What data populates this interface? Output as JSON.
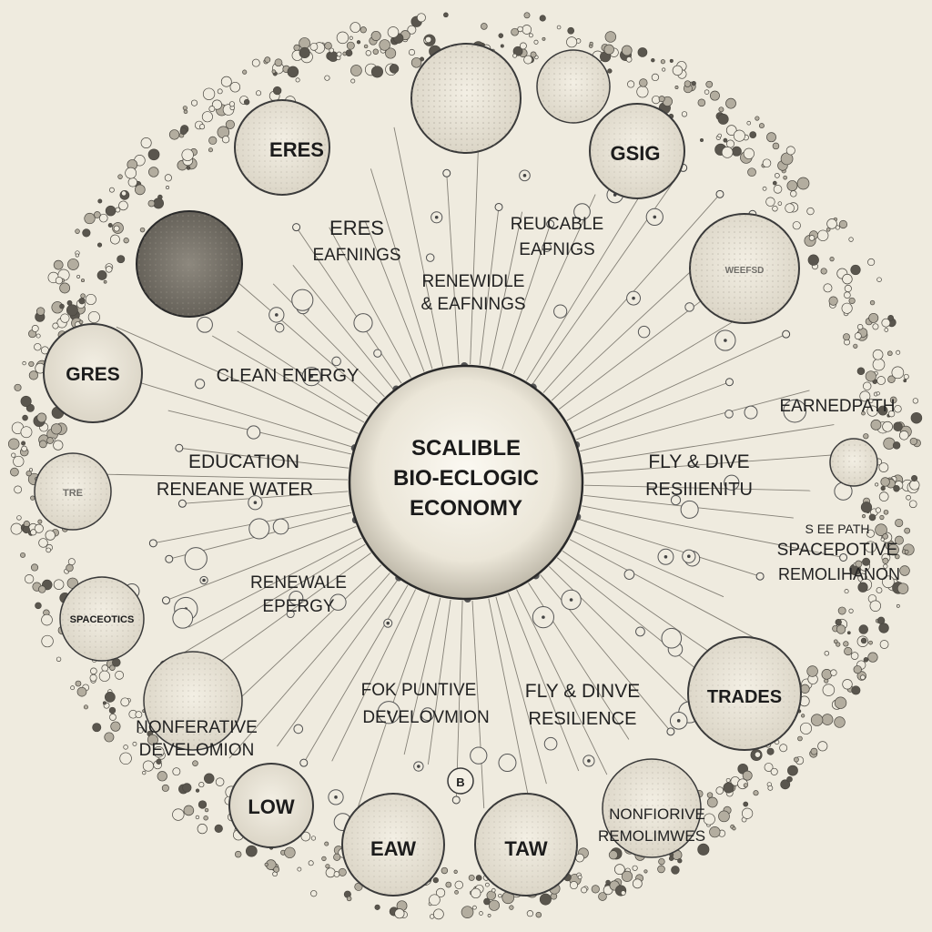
{
  "colors": {
    "background": "#efebdf",
    "ink": "#2a2a2a",
    "line": "#555555",
    "dark_node": "#6f6b63"
  },
  "center": {
    "lines": [
      "SCALIBLE",
      "BIO-ECLOGIC",
      "ECONOMY"
    ]
  },
  "nodes": [
    {
      "id": "eres",
      "text": "ERES"
    },
    {
      "id": "top-texture",
      "text": ""
    },
    {
      "id": "top-right-texture",
      "text": ""
    },
    {
      "id": "gsig",
      "text": "GSIG"
    },
    {
      "id": "dark-left",
      "text": ""
    },
    {
      "id": "right-upper",
      "text": "WEEFSD"
    },
    {
      "id": "gres",
      "text": "GRES"
    },
    {
      "id": "left-mid",
      "text": "TRE"
    },
    {
      "id": "spacecotics",
      "text": "SPACEOTICS"
    },
    {
      "id": "left-lower",
      "text": ""
    },
    {
      "id": "low",
      "text": "LOW"
    },
    {
      "id": "eaw",
      "text": "EAW"
    },
    {
      "id": "taw",
      "text": "TAW"
    },
    {
      "id": "bottom-right",
      "text": ""
    },
    {
      "id": "trades",
      "text": "TRADES"
    },
    {
      "id": "right-mid",
      "text": ""
    }
  ],
  "labels": [
    {
      "id": "eres-earnings",
      "lines": [
        "ERES",
        "EAFNINGS"
      ]
    },
    {
      "id": "reucable-earnings",
      "lines": [
        "REUCABLE",
        "EAFNIGS"
      ]
    },
    {
      "id": "renewible-earnings",
      "lines": [
        "RENEWIDLE",
        "& EAFNINGS"
      ]
    },
    {
      "id": "clean-energy",
      "lines": [
        "CLEAN ENERGY"
      ]
    },
    {
      "id": "education",
      "lines": [
        "EDUCATION",
        "RENEANE WATER"
      ]
    },
    {
      "id": "earnedpath",
      "lines": [
        "EARNEDPATH"
      ]
    },
    {
      "id": "fly-dive-top",
      "lines": [
        "FLY & DIVE",
        "RESIIIENITU"
      ]
    },
    {
      "id": "spacepotive",
      "lines": [
        "S EE PATH",
        "SPACEPOTIVE",
        "REMOLIHANON"
      ]
    },
    {
      "id": "renewal-energy",
      "lines": [
        "RENEWALE",
        "EPERGY"
      ]
    },
    {
      "id": "for-punitive",
      "lines": [
        "FOK PUNTIVE",
        "DEVELOVMION"
      ]
    },
    {
      "id": "fly-dive-bottom",
      "lines": [
        "FLY & DINVE",
        "RESILIENCE"
      ]
    },
    {
      "id": "nonferative",
      "lines": [
        "NONFERATIVE",
        "DEVELOMION"
      ]
    },
    {
      "id": "nonforive",
      "lines": [
        "NONFIORIVE",
        "REMOLIMWES"
      ]
    },
    {
      "id": "small-circle-mark",
      "lines": [
        "B"
      ]
    }
  ]
}
